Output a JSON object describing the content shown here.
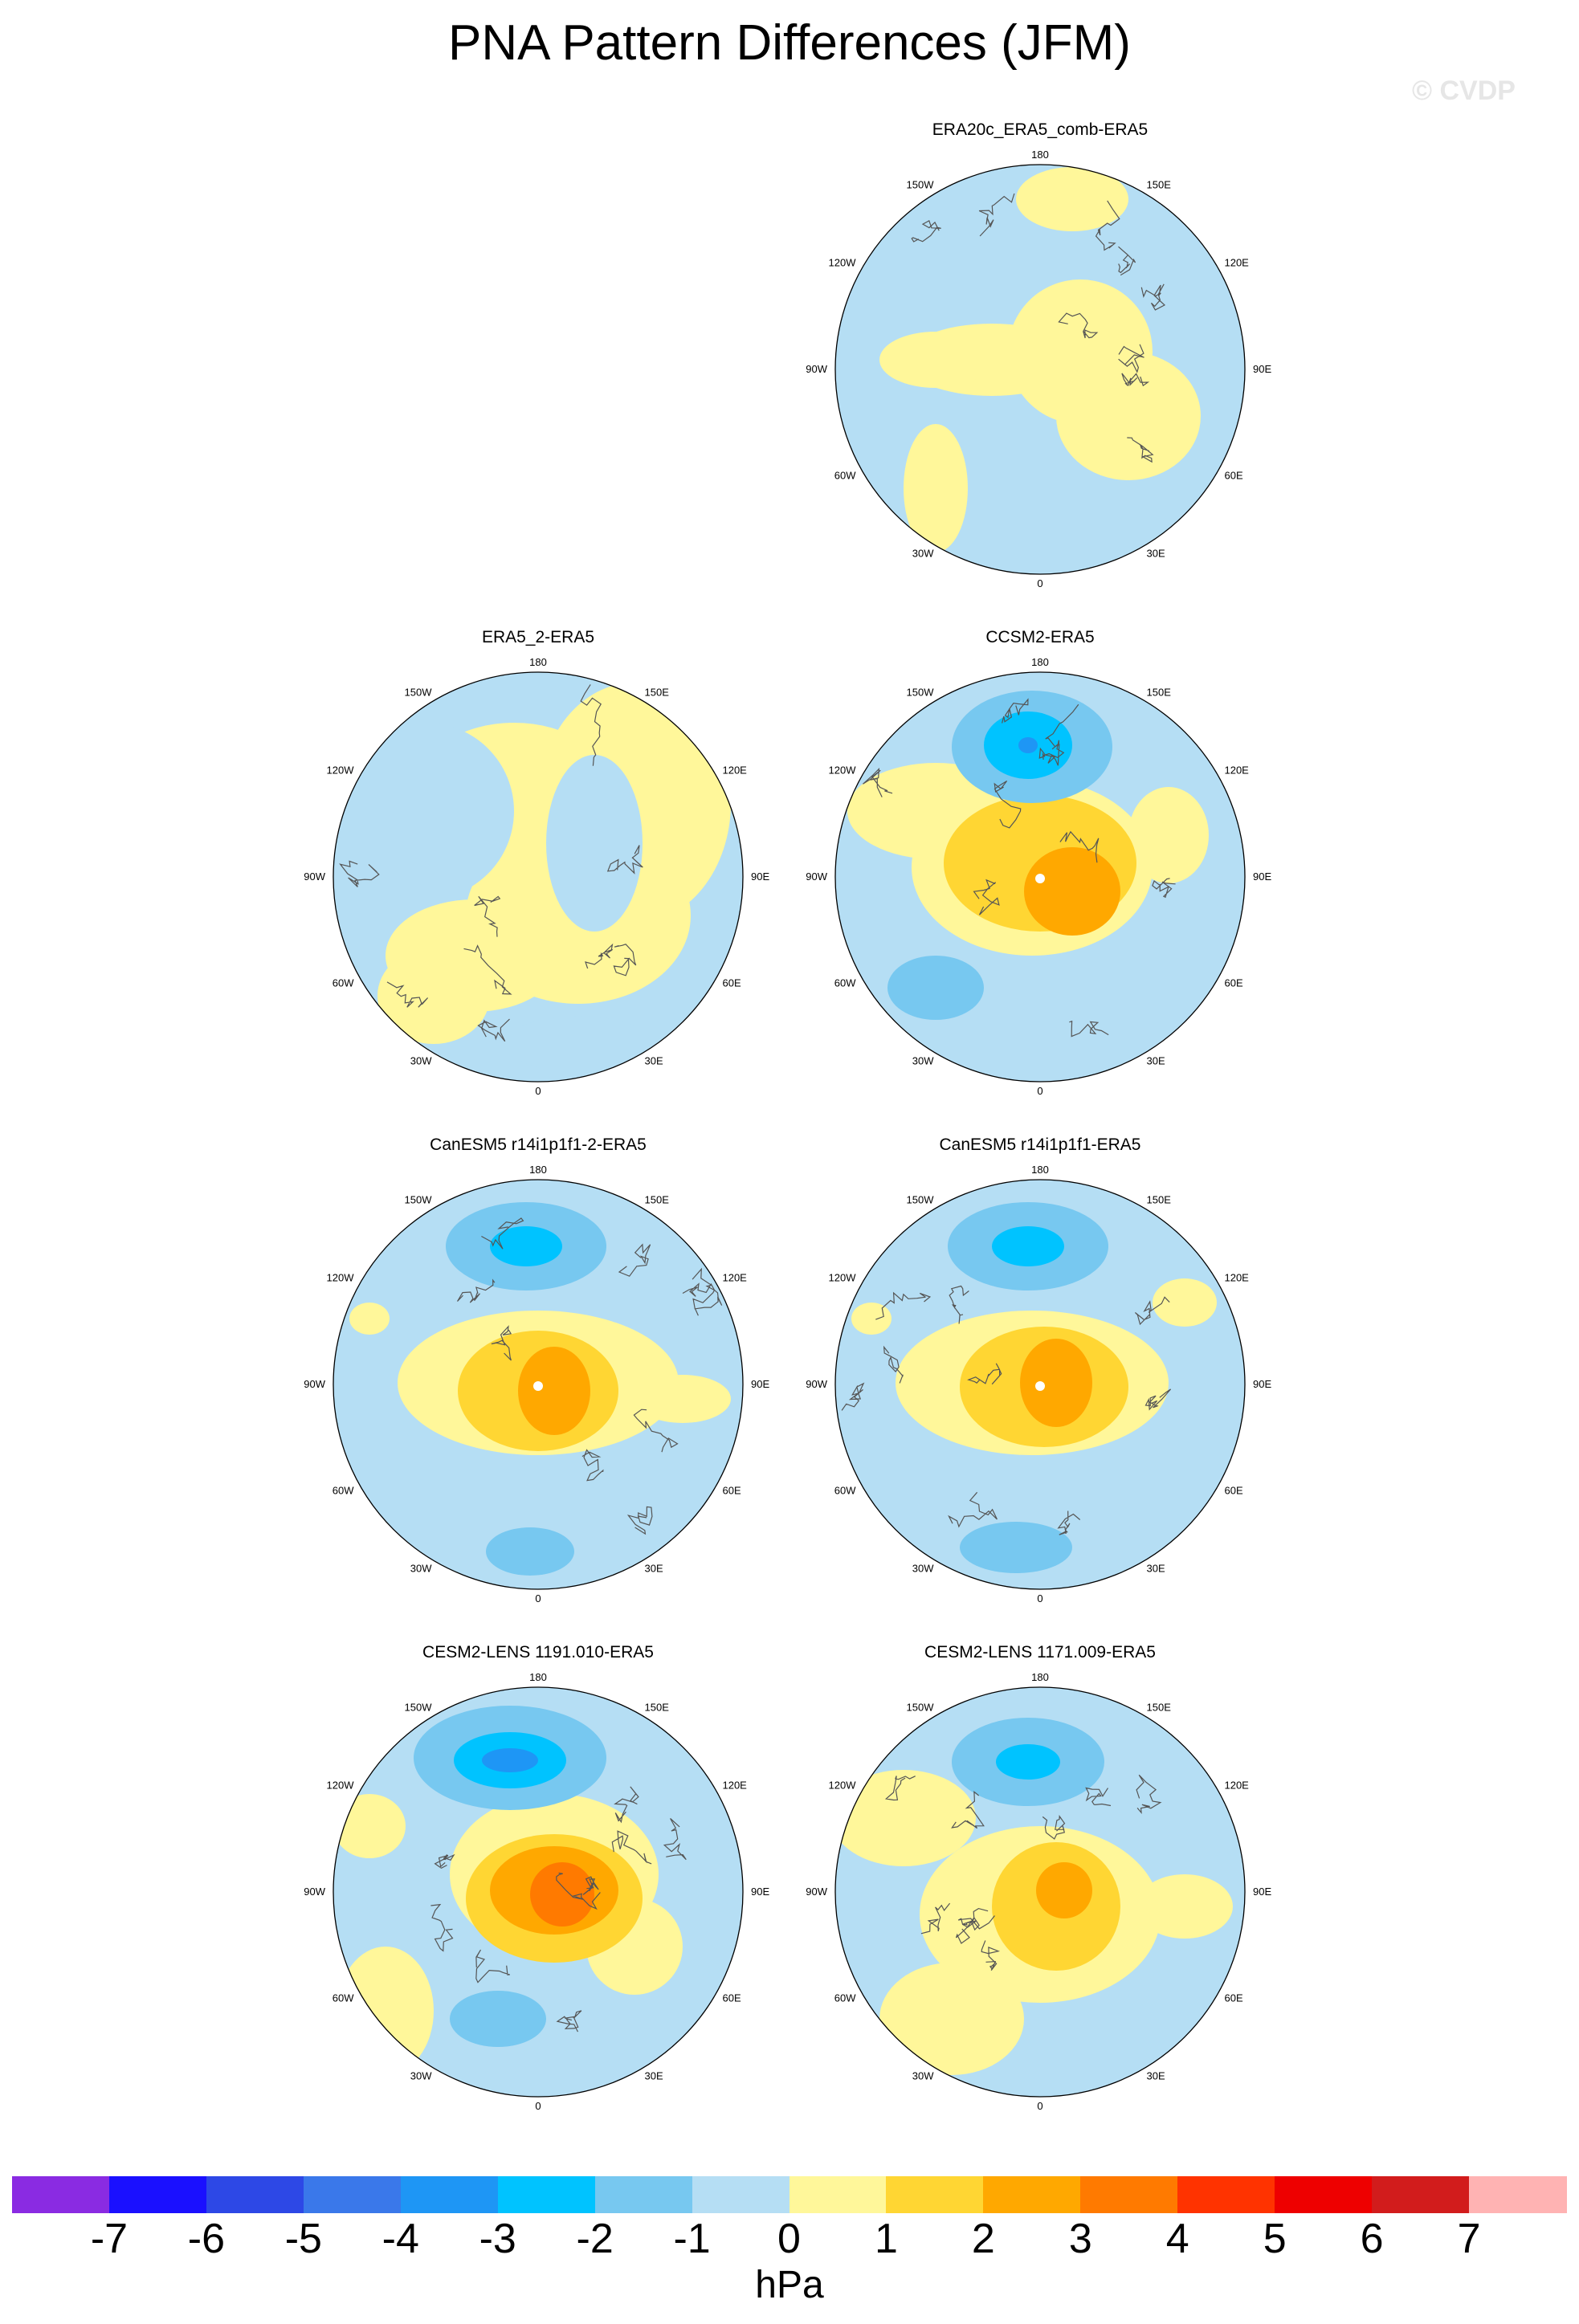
{
  "title": "PNA Pattern Differences (JFM)",
  "watermark": "© CVDP",
  "longitude_labels": {
    "top": "180",
    "upper_left": "150W",
    "upper_right": "150E",
    "mid_upper_left": "120W",
    "mid_upper_right": "120E",
    "left": "90W",
    "right": "90E",
    "mid_lower_left": "60W",
    "mid_lower_right": "60E",
    "lower_left": "30W",
    "lower_right": "30E",
    "bottom": "0"
  },
  "panels": [
    {
      "id": "p1",
      "title": "ERA20c_ERA5_comb-ERA5"
    },
    {
      "id": "p2",
      "title": "ERA5_2-ERA5"
    },
    {
      "id": "p3",
      "title": "CCSM2-ERA5"
    },
    {
      "id": "p4",
      "title": "CanESM5 r14i1p1f1-2-ERA5"
    },
    {
      "id": "p5",
      "title": "CanESM5 r14i1p1f1-ERA5"
    },
    {
      "id": "p6",
      "title": "CESM2-LENS 1191.010-ERA5"
    },
    {
      "id": "p7",
      "title": "CESM2-LENS 1171.009-ERA5"
    }
  ],
  "colorbar": {
    "labels": [
      "-7",
      "-6",
      "-5",
      "-4",
      "-3",
      "-2",
      "-1",
      "0",
      "1",
      "2",
      "3",
      "4",
      "5",
      "6",
      "7"
    ],
    "colors": [
      "#8a2be2",
      "#1a10ff",
      "#2d48e6",
      "#3a78ea",
      "#1e96f5",
      "#00c3ff",
      "#77c8f0",
      "#b5def4",
      "#fff79a",
      "#ffd633",
      "#ffa800",
      "#ff7a00",
      "#ff3300",
      "#ee0000",
      "#d21c1c",
      "#ffb3b3"
    ],
    "units": "hPa"
  },
  "colors": {
    "pos1": "#fff79a",
    "pos2": "#ffd633",
    "pos3": "#ffa800",
    "pos4": "#ff7a00",
    "neg1": "#b5def4",
    "neg2": "#77c8f0",
    "neg3": "#00c3ff",
    "neg4": "#1e96f5"
  }
}
